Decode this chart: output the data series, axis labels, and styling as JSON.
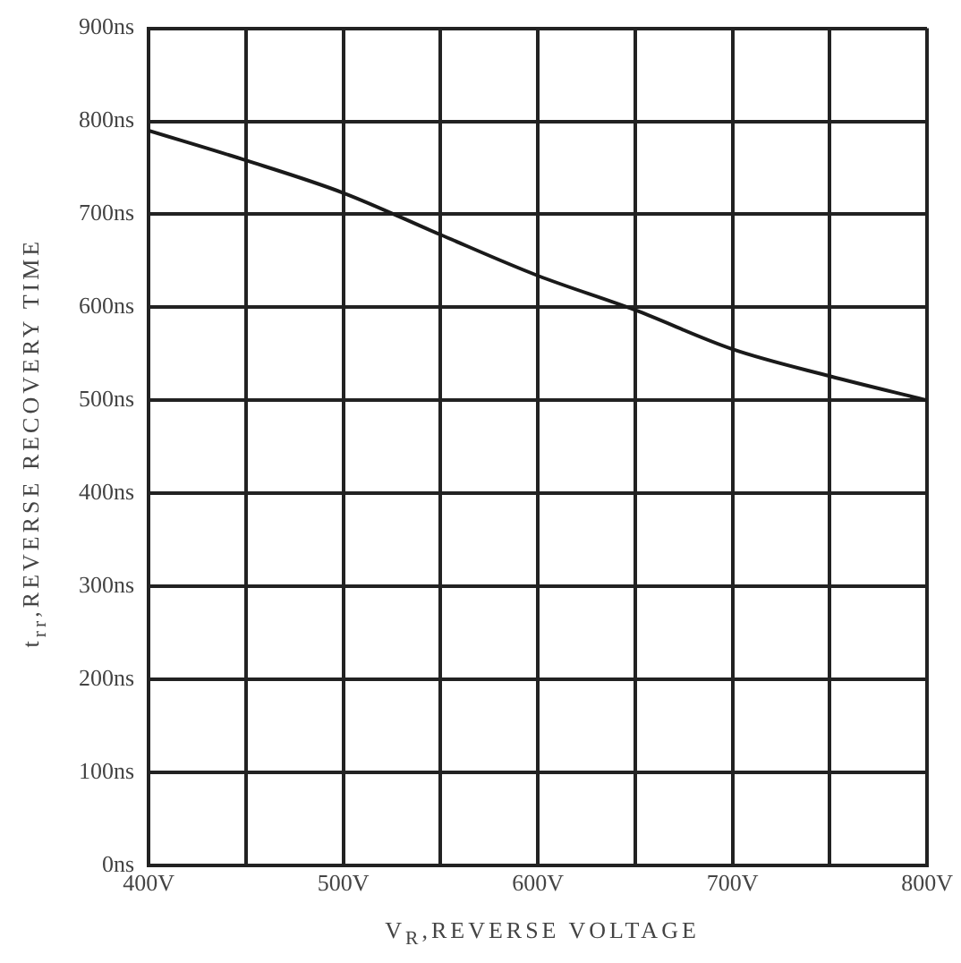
{
  "chart_data": {
    "type": "line",
    "xlabel": "V$_{R}$,REVERSE VOLTAGE",
    "ylabel": "t$_{rr}$,REVERSE RECOVERY TIME",
    "x": [
      400,
      450,
      500,
      550,
      600,
      650,
      700,
      750,
      800
    ],
    "series": [
      {
        "color": "#1a1a1a",
        "values": [
          790,
          758,
          723,
          678,
          634,
          597,
          555,
          526,
          500
        ]
      }
    ],
    "xlim": [
      400,
      800
    ],
    "xticks": [
      {
        "value": 400,
        "label": "400V"
      },
      {
        "value": 450,
        "label": null
      },
      {
        "value": 500,
        "label": "500V"
      },
      {
        "value": 550,
        "label": null
      },
      {
        "value": 600,
        "label": "600V"
      },
      {
        "value": 650,
        "label": null
      },
      {
        "value": 700,
        "label": "700V"
      },
      {
        "value": 750,
        "label": null
      },
      {
        "value": 800,
        "label": "800V"
      }
    ],
    "ylim": [
      0,
      900
    ],
    "yticks": [
      {
        "value": 0,
        "label": "0ns"
      },
      {
        "value": 100,
        "label": "100ns"
      },
      {
        "value": 200,
        "label": "200ns"
      },
      {
        "value": 300,
        "label": "300ns"
      },
      {
        "value": 400,
        "label": "400ns"
      },
      {
        "value": 500,
        "label": "500ns"
      },
      {
        "value": 600,
        "label": "600ns"
      },
      {
        "value": 700,
        "label": "700ns"
      },
      {
        "value": 800,
        "label": "800ns"
      },
      {
        "value": 900,
        "label": "900ns"
      }
    ],
    "grid": true,
    "legend": false,
    "marker": "none",
    "line_style": "solid"
  }
}
